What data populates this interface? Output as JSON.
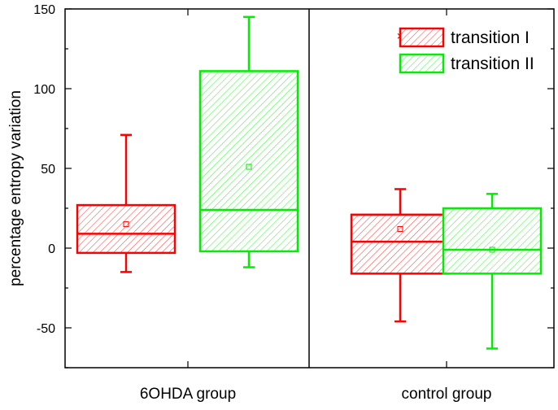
{
  "chart_data": {
    "type": "box",
    "title": "",
    "xlabel": "",
    "ylabel": "percentage entropy variation",
    "ylim": [
      -75,
      150
    ],
    "yticks": [
      -50,
      0,
      50,
      100,
      150
    ],
    "grid": false,
    "legend_position": "top-right",
    "groups": [
      "6OHDA group",
      "control group"
    ],
    "series": [
      {
        "name": "transition I",
        "color": "#ff0000",
        "boxes": [
          {
            "group": "6OHDA group",
            "whisker_low": -15,
            "q1": -3,
            "median": 9,
            "q3": 27,
            "whisker_high": 71,
            "mean": 15,
            "outliers": []
          },
          {
            "group": "control group",
            "whisker_low": -46,
            "q1": -16,
            "median": 4,
            "q3": 21,
            "whisker_high": 37,
            "mean": 12,
            "outliers": [
              133
            ]
          }
        ]
      },
      {
        "name": "transition II",
        "color": "#00ee00",
        "boxes": [
          {
            "group": "6OHDA group",
            "whisker_low": -12,
            "q1": -2,
            "median": 24,
            "q3": 111,
            "whisker_high": 145,
            "mean": 51,
            "outliers": []
          },
          {
            "group": "control group",
            "whisker_low": -63,
            "q1": -16,
            "median": -1,
            "q3": 25,
            "whisker_high": 34,
            "mean": -1,
            "outliers": []
          }
        ]
      }
    ]
  }
}
